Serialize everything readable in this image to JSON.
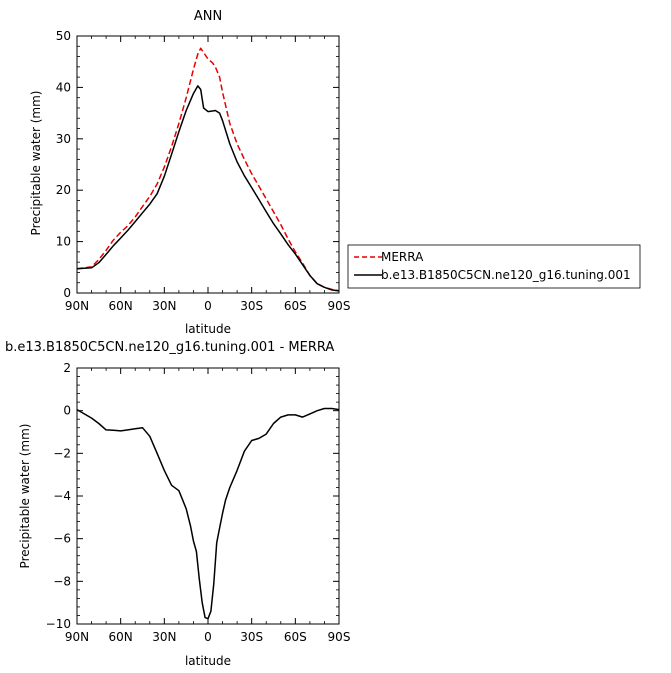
{
  "chart_data": [
    {
      "type": "line",
      "title": "ANN",
      "xlabel": "latitude",
      "ylabel": "Precipitable water (mm)",
      "xlim": [
        -90,
        90
      ],
      "ylim": [
        0,
        50
      ],
      "x_ticks": [
        -90,
        -60,
        -30,
        0,
        30,
        60,
        90
      ],
      "x_tick_labels": [
        "90N",
        "60N",
        "30N",
        "0",
        "30S",
        "60S",
        "90S"
      ],
      "y_ticks": [
        0,
        10,
        20,
        30,
        40,
        50
      ],
      "y_tick_labels": [
        "0",
        "10",
        "20",
        "30",
        "40",
        "50"
      ],
      "grid": false,
      "legend": "right",
      "series": [
        {
          "name": "MERRA",
          "color": "#e60000",
          "dash": "dashed",
          "x": [
            -90,
            -85,
            -80,
            -75,
            -70,
            -65,
            -60,
            -55,
            -50,
            -45,
            -40,
            -35,
            -30,
            -25,
            -20,
            -15,
            -10,
            -7,
            -5,
            -3,
            0,
            3,
            5,
            8,
            10,
            15,
            20,
            25,
            30,
            35,
            40,
            45,
            50,
            55,
            60,
            65,
            70,
            75,
            80,
            85,
            90
          ],
          "y": [
            4.7,
            4.9,
            5.1,
            6.5,
            8.3,
            10.3,
            11.8,
            13.1,
            14.8,
            16.8,
            18.8,
            21.2,
            24.5,
            28.5,
            33.0,
            38.0,
            43.5,
            46.5,
            47.6,
            46.8,
            45.5,
            44.8,
            44.0,
            42.0,
            39.0,
            33.0,
            29.0,
            26.0,
            23.2,
            20.8,
            18.3,
            15.8,
            13.3,
            10.5,
            8.0,
            5.8,
            3.4,
            1.8,
            1.1,
            0.7,
            0.4
          ]
        },
        {
          "name": "b.e13.B1850C5CN.ne120_g16.tuning.001",
          "color": "#000000",
          "dash": "solid",
          "x": [
            -90,
            -85,
            -80,
            -75,
            -70,
            -65,
            -60,
            -55,
            -50,
            -45,
            -40,
            -35,
            -30,
            -25,
            -20,
            -15,
            -10,
            -7,
            -5,
            -3,
            0,
            3,
            5,
            8,
            10,
            15,
            20,
            25,
            30,
            35,
            40,
            45,
            50,
            55,
            60,
            65,
            70,
            75,
            80,
            85,
            90
          ],
          "y": [
            4.7,
            4.8,
            4.9,
            5.9,
            7.5,
            9.2,
            10.7,
            12.2,
            13.9,
            15.6,
            17.3,
            19.3,
            22.7,
            27.0,
            31.4,
            35.5,
            38.8,
            40.3,
            39.6,
            36.0,
            35.3,
            35.4,
            35.5,
            35.0,
            33.5,
            29.0,
            25.5,
            22.8,
            20.5,
            18.2,
            15.8,
            13.5,
            11.5,
            9.4,
            7.6,
            5.5,
            3.4,
            1.8,
            1.1,
            0.6,
            0.4
          ]
        }
      ]
    },
    {
      "type": "line",
      "title": "b.e13.B1850C5CN.ne120_g16.tuning.001  -  MERRA",
      "xlabel": "latitude",
      "ylabel": "Precipitable water (mm)",
      "xlim": [
        -90,
        90
      ],
      "ylim": [
        -10,
        2
      ],
      "x_ticks": [
        -90,
        -60,
        -30,
        0,
        30,
        60,
        90
      ],
      "x_tick_labels": [
        "90N",
        "60N",
        "30N",
        "0",
        "30S",
        "60S",
        "90S"
      ],
      "y_ticks": [
        -10,
        -8,
        -6,
        -4,
        -2,
        0,
        2
      ],
      "y_tick_labels": [
        "−10",
        "−8",
        "−6",
        "−4",
        "−2",
        "0",
        "2"
      ],
      "grid": false,
      "series": [
        {
          "color": "#000000",
          "dash": "solid",
          "x": [
            -90,
            -85,
            -80,
            -75,
            -70,
            -65,
            -60,
            -55,
            -50,
            -45,
            -40,
            -35,
            -30,
            -25,
            -20,
            -15,
            -12,
            -10,
            -8,
            -6,
            -4,
            -2,
            0,
            2,
            4,
            6,
            8,
            10,
            12,
            15,
            20,
            25,
            30,
            35,
            40,
            45,
            50,
            55,
            60,
            65,
            70,
            75,
            80,
            85,
            90
          ],
          "y": [
            0.05,
            -0.15,
            -0.35,
            -0.6,
            -0.9,
            -0.92,
            -0.95,
            -0.9,
            -0.85,
            -0.8,
            -1.2,
            -2.0,
            -2.8,
            -3.5,
            -3.75,
            -4.6,
            -5.4,
            -6.1,
            -6.6,
            -7.9,
            -9.0,
            -9.7,
            -9.75,
            -9.4,
            -8.1,
            -6.2,
            -5.5,
            -4.8,
            -4.2,
            -3.6,
            -2.8,
            -1.9,
            -1.4,
            -1.3,
            -1.1,
            -0.6,
            -0.3,
            -0.2,
            -0.2,
            -0.3,
            -0.15,
            0.0,
            0.1,
            0.1,
            0.05
          ]
        }
      ]
    }
  ]
}
